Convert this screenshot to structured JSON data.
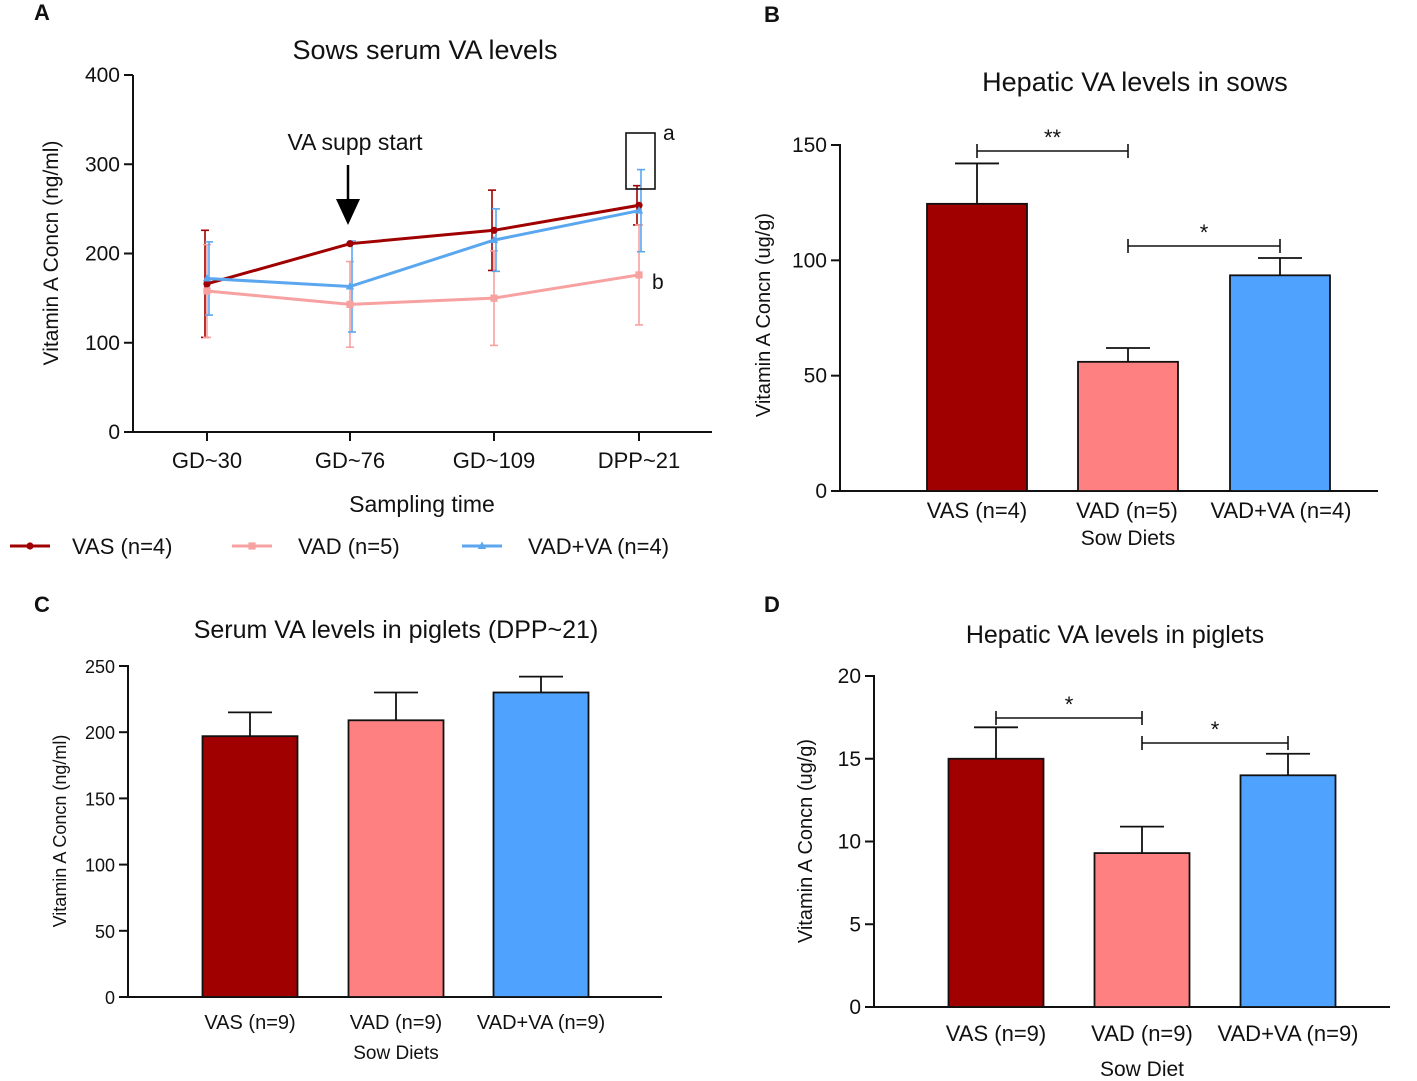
{
  "colors": {
    "vas": "#a00000",
    "vad": "#ff8080",
    "vadva": "#50a2ff",
    "vad_line": "#f7a1a1",
    "vadva_line": "#5aa7ef"
  },
  "panels": {
    "a": "A",
    "b": "B",
    "c": "C",
    "d": "D"
  },
  "chart_data": [
    {
      "id": "A",
      "type": "line",
      "title": "Sows serum VA levels",
      "xlabel": "Sampling time",
      "ylabel": "Vitamin A Concn (ng/ml)",
      "categories": [
        "GD~30",
        "GD~76",
        "GD~109",
        "DPP~21"
      ],
      "ylim": [
        0,
        400
      ],
      "yticks": [
        "0",
        "100",
        "200",
        "300",
        "400"
      ],
      "series": [
        {
          "name": "VAS (n=4)",
          "color": "#a00000",
          "marker": "circle",
          "values": [
            166,
            211,
            226,
            254
          ],
          "errors": [
            60,
            0,
            45,
            22
          ]
        },
        {
          "name": "VAD (n=5)",
          "color": "#f7a1a1",
          "marker": "square",
          "values": [
            158,
            143,
            150,
            176
          ],
          "errors": [
            52,
            48,
            53,
            56
          ]
        },
        {
          "name": "VAD+VA (n=4)",
          "color": "#5aa7ef",
          "marker": "triangle",
          "values": [
            172,
            163,
            215,
            248
          ],
          "errors": [
            41,
            51,
            35,
            46
          ]
        }
      ],
      "annotations": {
        "arrow_label": "VA supp start",
        "label_a": "a",
        "label_b": "b"
      }
    },
    {
      "id": "B",
      "type": "bar",
      "title": "Hepatic VA levels in sows",
      "xlabel": "Sow Diets",
      "ylabel": "Vitamin A Concn (ug/g)",
      "categories": [
        "VAS (n=4)",
        "VAD (n=5)",
        "VAD+VA (n=4)"
      ],
      "values": [
        124.5,
        56,
        93.5
      ],
      "errors": [
        17.5,
        6,
        7.5
      ],
      "ylim": [
        0,
        150
      ],
      "yticks": [
        "0",
        "50",
        "100",
        "150"
      ],
      "significance": [
        {
          "from": 0,
          "to": 1,
          "label": "**"
        },
        {
          "from": 1,
          "to": 2,
          "label": "*"
        }
      ]
    },
    {
      "id": "C",
      "type": "bar",
      "title": "Serum VA levels in piglets (DPP~21)",
      "xlabel": "Sow Diets",
      "ylabel": "Vitamin A Concn (ng/ml)",
      "categories": [
        "VAS (n=9)",
        "VAD (n=9)",
        "VAD+VA (n=9)"
      ],
      "values": [
        197,
        209,
        230
      ],
      "errors": [
        18,
        21,
        12
      ],
      "ylim": [
        0,
        250
      ],
      "yticks": [
        "0",
        "50",
        "100",
        "150",
        "200",
        "250"
      ],
      "significance": []
    },
    {
      "id": "D",
      "type": "bar",
      "title": "Hepatic VA levels in piglets",
      "xlabel": "Sow Diet",
      "ylabel": "Vitamin A Concn (ug/g)",
      "categories": [
        "VAS (n=9)",
        "VAD (n=9)",
        "VAD+VA (n=9)"
      ],
      "values": [
        15,
        9.3,
        14
      ],
      "errors": [
        1.9,
        1.6,
        1.3
      ],
      "ylim": [
        0,
        20
      ],
      "yticks": [
        "0",
        "5",
        "10",
        "15",
        "20"
      ],
      "significance": [
        {
          "from": 0,
          "to": 1,
          "label": "*"
        },
        {
          "from": 1,
          "to": 2,
          "label": "*"
        }
      ]
    }
  ]
}
